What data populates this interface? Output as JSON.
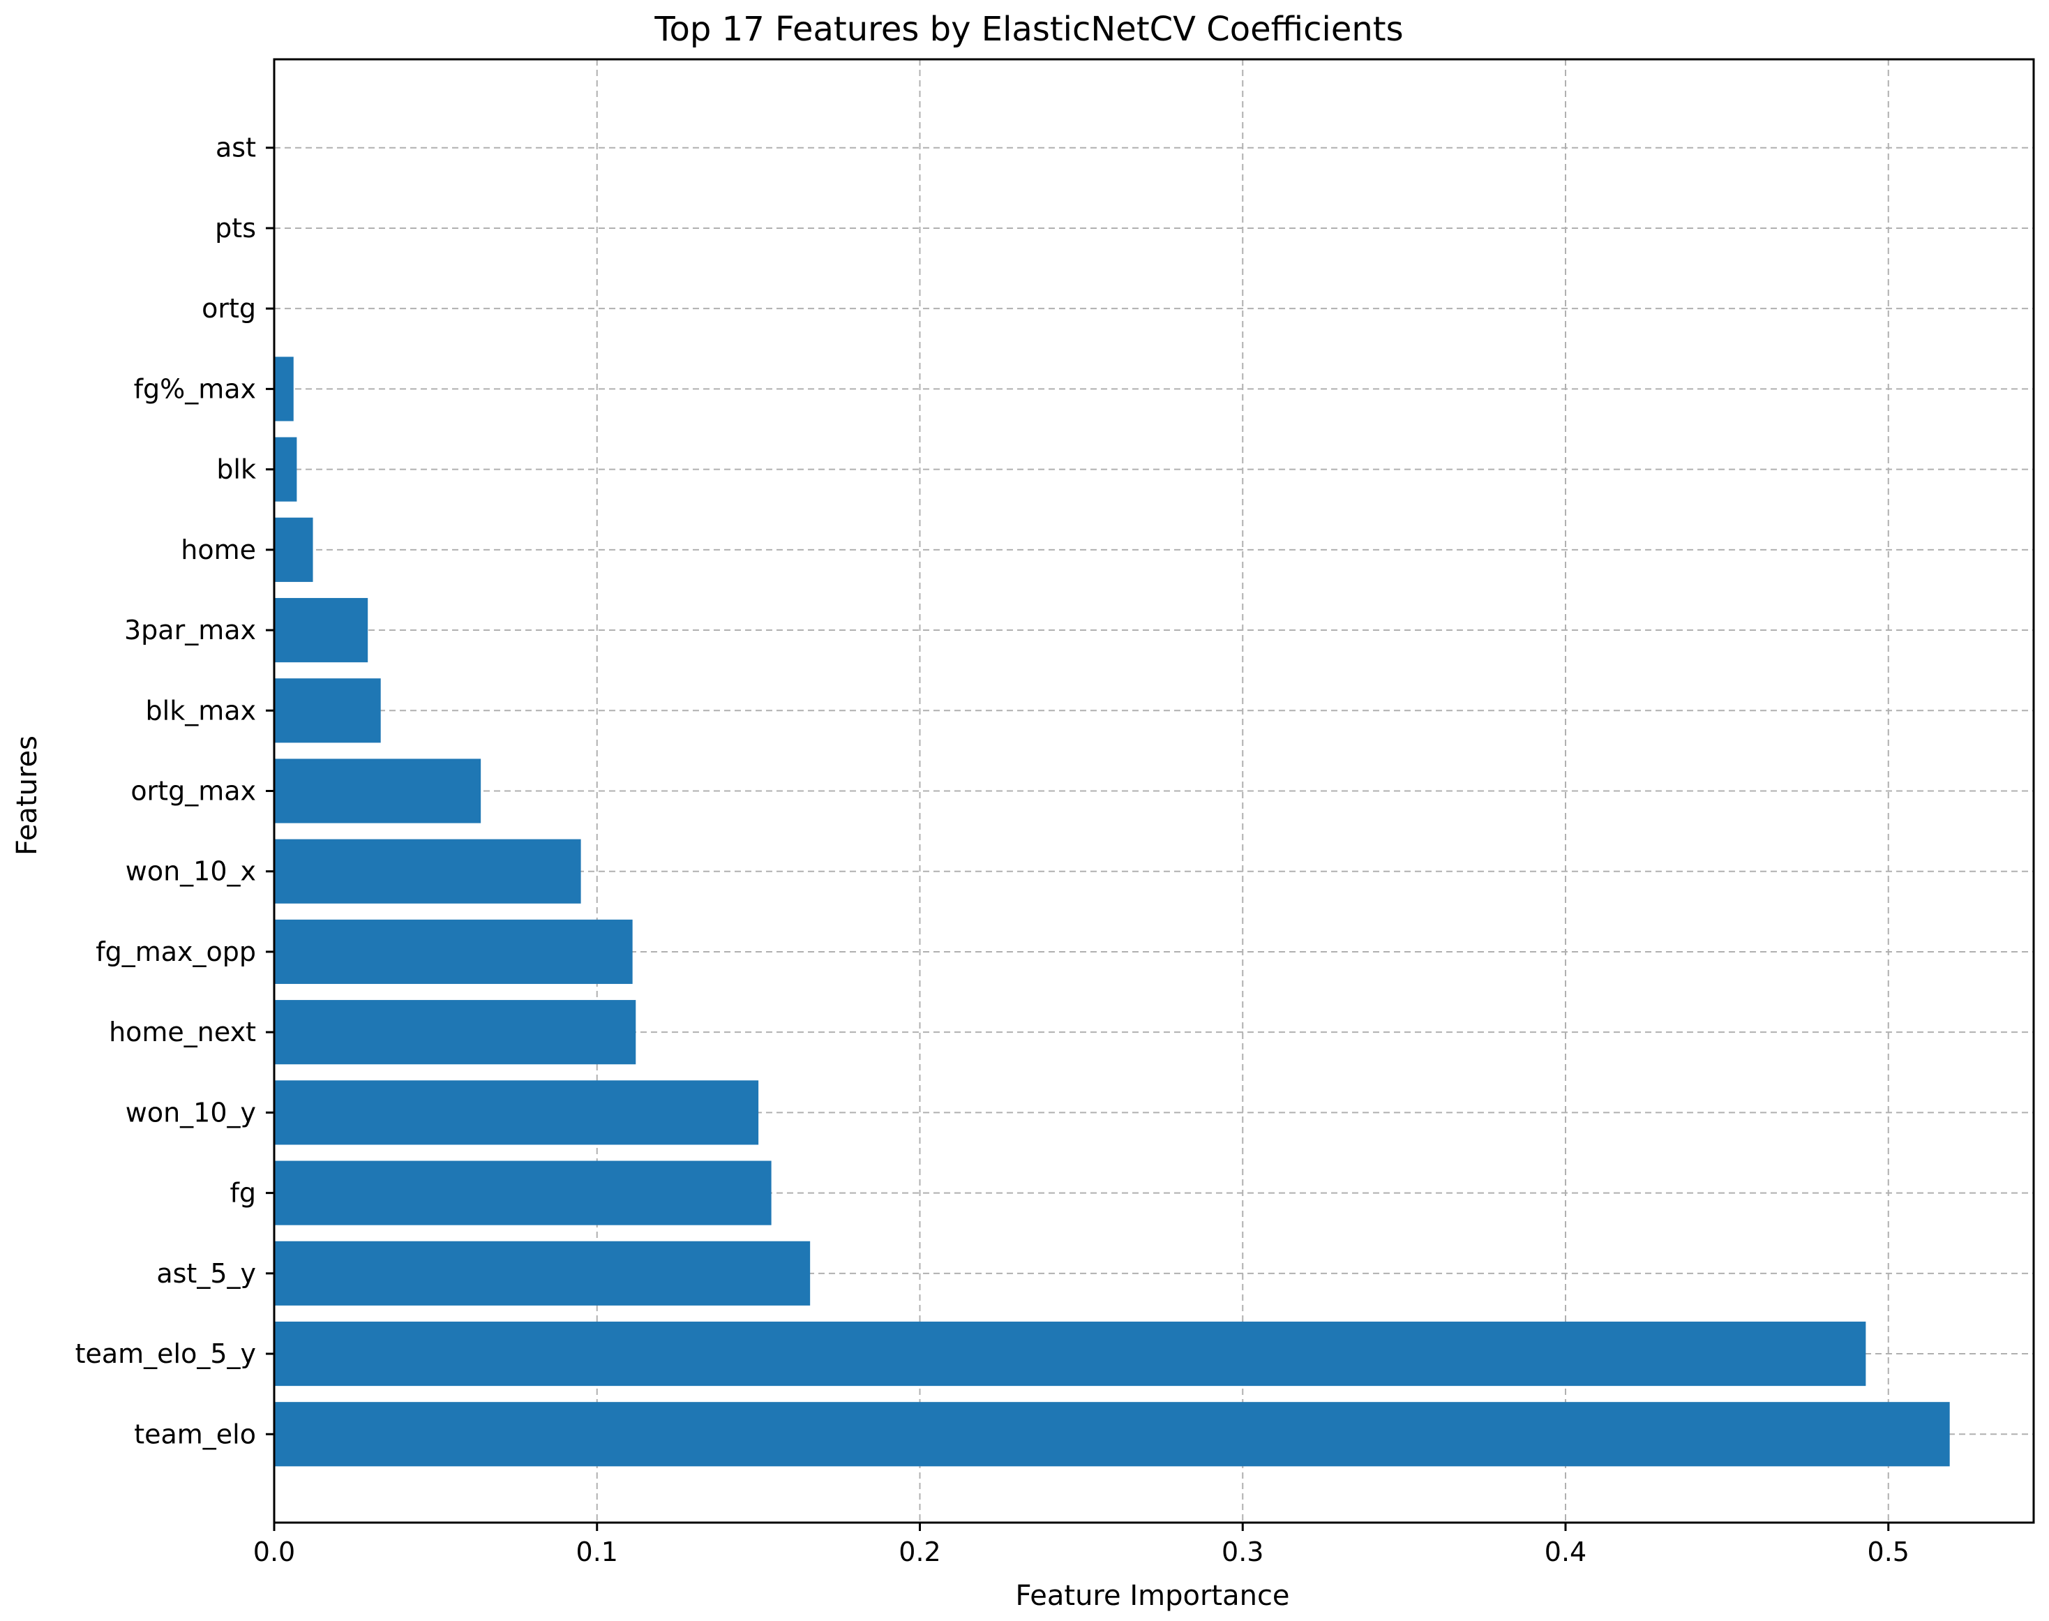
{
  "chart_data": {
    "type": "bar",
    "orientation": "horizontal",
    "title": "Top 17 Features by ElasticNetCV Coefficients",
    "xlabel": "Feature Importance",
    "ylabel": "Features",
    "categories": [
      "team_elo",
      "team_elo_5_y",
      "ast_5_y",
      "fg",
      "won_10_y",
      "home_next",
      "fg_max_opp",
      "won_10_x",
      "ortg_max",
      "blk_max",
      "3par_max",
      "home",
      "blk",
      "fg%_max",
      "ortg",
      "pts",
      "ast"
    ],
    "values": [
      0.519,
      0.493,
      0.166,
      0.154,
      0.15,
      0.112,
      0.111,
      0.095,
      0.064,
      0.033,
      0.029,
      0.012,
      0.007,
      0.006,
      0.0,
      0.0,
      0.0
    ],
    "xlim": [
      0,
      0.545
    ],
    "xticks": [
      0.0,
      0.1,
      0.2,
      0.3,
      0.4,
      0.5
    ],
    "xtick_labels": [
      "0.0",
      "0.1",
      "0.2",
      "0.3",
      "0.4",
      "0.5"
    ],
    "bar_color": "#1f77b4",
    "grid": true
  }
}
